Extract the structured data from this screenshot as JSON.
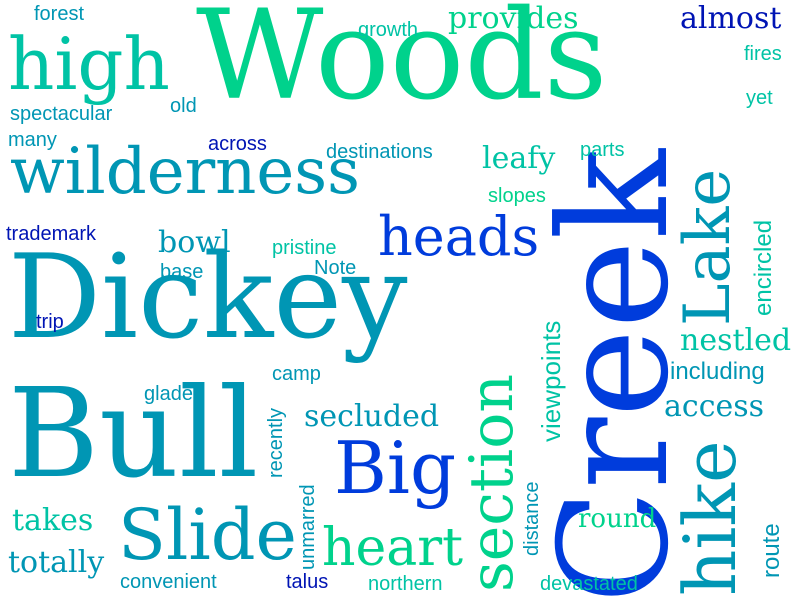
{
  "palette": {
    "background": "#ffffff",
    "green": "#00d28c",
    "teal": "#0096b4",
    "blue": "#003cdc",
    "navy": "#0014b4",
    "cyan": "#00c3a5"
  },
  "words": {
    "woods": "Woods",
    "wilderness": "wilderness",
    "dickey": "Dickey",
    "bull": "Bull",
    "creek": "Creek",
    "slide": "Slide",
    "section": "section",
    "hike": "hike",
    "lake": "Lake",
    "high": "high",
    "heads": "heads",
    "big": "Big",
    "heart": "heart",
    "forest": "forest",
    "growth": "growth",
    "provides": "provides",
    "almost": "almost",
    "fires": "fires",
    "spectacular": "spectacular",
    "old": "old",
    "yet": "yet",
    "many": "many",
    "across": "across",
    "destinations": "destinations",
    "leafy": "leafy",
    "parts": "parts",
    "slopes": "slopes",
    "trademark": "trademark",
    "bowl": "bowl",
    "pristine": "pristine",
    "base": "base",
    "note": "Note",
    "encircled": "encircled",
    "trip": "trip",
    "viewpoints": "viewpoints",
    "nestled": "nestled",
    "including": "including",
    "camp": "camp",
    "glades": "glades",
    "secluded": "secluded",
    "access": "access",
    "recently": "recently",
    "distance": "distance",
    "unmarred": "unmarred",
    "takes": "takes",
    "round": "round",
    "route": "route",
    "totally": "totally",
    "convenient": "convenient",
    "talus": "talus",
    "northern": "northern",
    "devastated": "devastated"
  }
}
